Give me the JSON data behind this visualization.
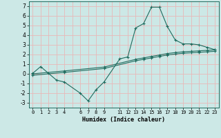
{
  "xlabel": "Humidex (Indice chaleur)",
  "bg_color": "#cce8e6",
  "grid_color": "#e8b8b8",
  "line_color": "#1e6b5e",
  "line1_x": [
    0,
    1,
    2,
    3,
    4,
    6,
    7,
    8,
    9,
    11,
    12,
    13,
    14,
    15,
    16,
    17,
    18,
    19,
    20,
    21,
    22,
    23
  ],
  "line1_y": [
    0.05,
    0.75,
    0.05,
    -0.65,
    -0.85,
    -2.0,
    -2.8,
    -1.65,
    -0.85,
    1.55,
    1.75,
    4.75,
    5.2,
    6.9,
    6.9,
    4.9,
    3.5,
    3.1,
    3.1,
    3.0,
    2.75,
    2.5
  ],
  "line2_x": [
    0,
    4,
    9,
    13,
    14,
    15,
    16,
    17,
    18,
    19,
    20,
    21,
    22,
    23
  ],
  "line2_y": [
    0.0,
    0.3,
    0.7,
    1.5,
    1.65,
    1.8,
    1.95,
    2.1,
    2.2,
    2.28,
    2.33,
    2.38,
    2.43,
    2.48
  ],
  "line3_x": [
    0,
    4,
    9,
    13,
    14,
    15,
    16,
    17,
    18,
    19,
    20,
    21,
    22,
    23
  ],
  "line3_y": [
    -0.15,
    0.15,
    0.55,
    1.35,
    1.5,
    1.65,
    1.8,
    1.95,
    2.05,
    2.13,
    2.18,
    2.23,
    2.28,
    2.33
  ],
  "xlim": [
    -0.5,
    23.5
  ],
  "ylim": [
    -3.5,
    7.5
  ],
  "yticks": [
    -3,
    -2,
    -1,
    0,
    1,
    2,
    3,
    4,
    5,
    6,
    7
  ],
  "xticks": [
    0,
    1,
    2,
    3,
    4,
    6,
    7,
    8,
    9,
    11,
    12,
    13,
    14,
    15,
    16,
    17,
    18,
    19,
    20,
    21,
    22,
    23
  ],
  "xtick_labels": [
    "0",
    "1",
    "2",
    "3",
    "4",
    "6",
    "7",
    "8",
    "9",
    "11",
    "12",
    "13",
    "14",
    "15",
    "16",
    "17",
    "18",
    "19",
    "20",
    "21",
    "22",
    "23"
  ],
  "marker": "+",
  "markersize": 3,
  "linewidth": 0.8
}
